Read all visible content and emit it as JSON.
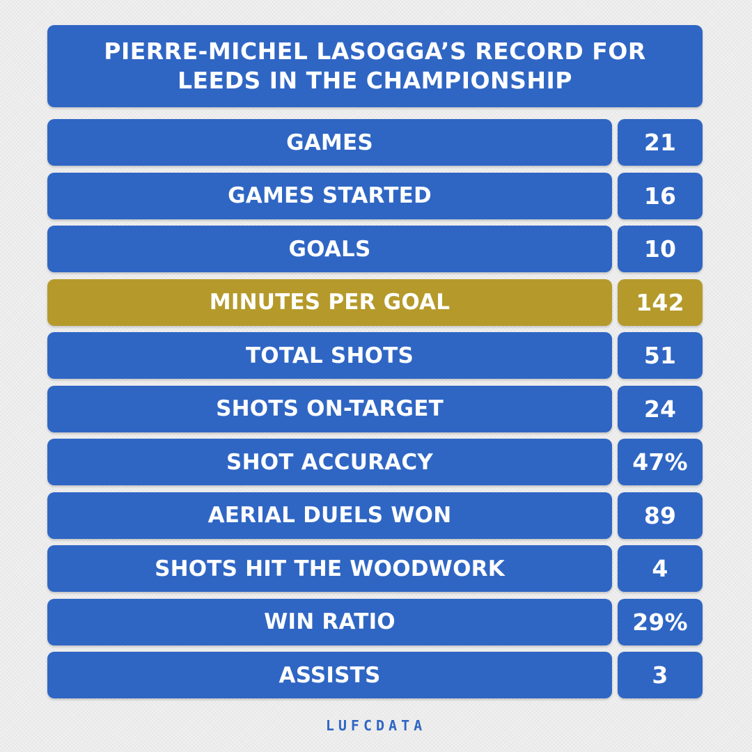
{
  "title": "PIERRE-MICHEL LASOGGA’S RECORD FOR LEEDS IN THE CHAMPIONSHIP",
  "rows": [
    {
      "label": "GAMES",
      "value": "21",
      "highlight": false
    },
    {
      "label": "GAMES STARTED",
      "value": "16",
      "highlight": false
    },
    {
      "label": "GOALS",
      "value": "10",
      "highlight": false
    },
    {
      "label": "MINUTES PER GOAL",
      "value": "142",
      "highlight": true
    },
    {
      "label": "TOTAL SHOTS",
      "value": "51",
      "highlight": false
    },
    {
      "label": "SHOTS ON-TARGET",
      "value": "24",
      "highlight": false
    },
    {
      "label": "SHOT ACCURACY",
      "value": "47%",
      "highlight": false
    },
    {
      "label": "AERIAL DUELS WON",
      "value": "89",
      "highlight": false
    },
    {
      "label": "SHOTS HIT THE WOODWORK",
      "value": "4",
      "highlight": false
    },
    {
      "label": "WIN RATIO",
      "value": "29%",
      "highlight": false
    },
    {
      "label": "ASSISTS",
      "value": "3",
      "highlight": false
    }
  ],
  "footer": "LUFCDATA",
  "colors": {
    "box_blue": "#2f66c4",
    "highlight_gold": "#b59a2b",
    "background": "#ececec",
    "text": "#ffffff"
  }
}
